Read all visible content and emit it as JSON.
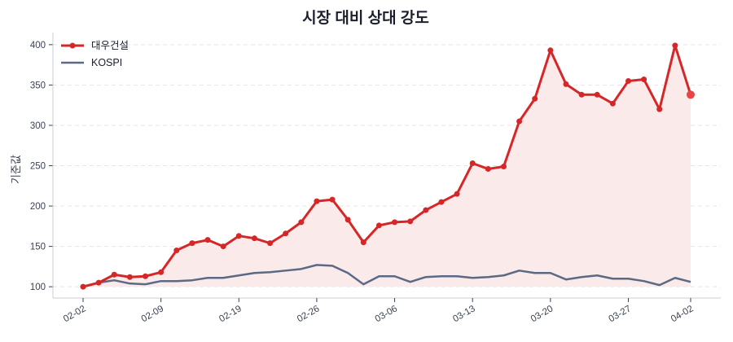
{
  "chart_data": {
    "type": "line",
    "title": "시장 대비 상대 강도",
    "xlabel": "",
    "ylabel": "기준값",
    "ylim": [
      86,
      415
    ],
    "yticks": [
      100,
      150,
      200,
      250,
      300,
      350,
      400
    ],
    "grid": true,
    "legend_placement": "top-left",
    "x": [
      "02-02",
      "02-03",
      "02-04",
      "02-05",
      "02-06",
      "02-09",
      "02-10",
      "02-11",
      "02-12",
      "02-13",
      "02-19",
      "02-20",
      "02-23",
      "02-24",
      "02-25",
      "02-26",
      "02-27",
      "03-03",
      "03-04",
      "03-05",
      "03-06",
      "03-09",
      "03-10",
      "03-11",
      "03-12",
      "03-13",
      "03-16",
      "03-17",
      "03-18",
      "03-19",
      "03-20",
      "03-23",
      "03-24",
      "03-25",
      "03-26",
      "03-27",
      "03-30",
      "03-31",
      "04-01",
      "04-02"
    ],
    "xtick_labels": [
      "02-02",
      "02-09",
      "02-19",
      "02-26",
      "03-06",
      "03-13",
      "03-20",
      "03-27",
      "04-02"
    ],
    "series": [
      {
        "name": "대우건설",
        "color": "#d62728",
        "fill": "#fbeaea",
        "markers": true,
        "values": [
          100,
          105,
          115,
          112,
          113,
          118,
          145,
          154,
          158,
          150,
          163,
          160,
          154,
          166,
          180,
          206,
          208,
          183,
          155,
          176,
          180,
          181,
          195,
          205,
          215,
          253,
          246,
          249,
          305,
          333,
          393,
          351,
          338,
          338,
          327,
          355,
          357,
          320,
          399,
          338
        ]
      },
      {
        "name": "KOSPI",
        "color": "#5a6a85",
        "markers": false,
        "values": [
          100,
          105,
          108,
          104,
          103,
          107,
          107,
          108,
          111,
          111,
          114,
          117,
          118,
          120,
          122,
          127,
          126,
          117,
          103,
          113,
          113,
          106,
          112,
          113,
          113,
          111,
          112,
          114,
          120,
          117,
          117,
          109,
          112,
          114,
          110,
          110,
          107,
          102,
          111,
          106
        ]
      }
    ]
  }
}
